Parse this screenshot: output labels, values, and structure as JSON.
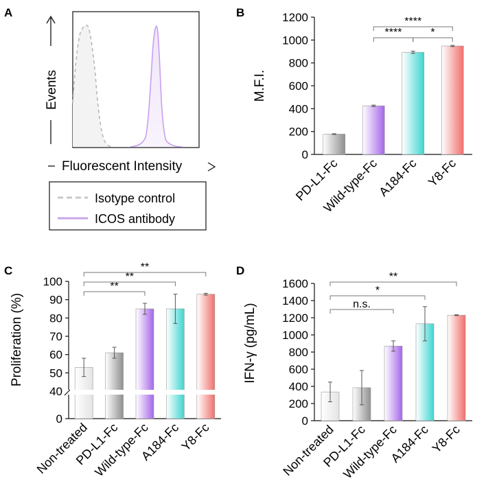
{
  "chart_data": [
    {
      "panel": "A",
      "type": "histogram",
      "ylabel": "Events",
      "xlabel": "Fluorescent Intensity",
      "legend": [
        {
          "label": "Isotype control",
          "color": "#c8c8c8",
          "style": "dashed"
        },
        {
          "label": "ICOS antibody",
          "color": "#c9a6e8",
          "style": "solid"
        }
      ]
    },
    {
      "panel": "B",
      "type": "bar",
      "ylabel": "M.F.I.",
      "ylim": [
        0,
        1200
      ],
      "yticks": [
        "0",
        "200",
        "400",
        "600",
        "800",
        "1000",
        "1200"
      ],
      "categories": [
        "PD-L1-Fc",
        "Wild-type-Fc",
        "A184-Fc",
        "Y8-Fc"
      ],
      "values": [
        178,
        425,
        893,
        948
      ],
      "errors": [
        3,
        6,
        10,
        5
      ],
      "significance": [
        {
          "from": 1,
          "to": 2,
          "label": "****"
        },
        {
          "from": 2,
          "to": 3,
          "label": "*"
        },
        {
          "from": 1,
          "to": 3,
          "label": "****"
        }
      ]
    },
    {
      "panel": "C",
      "type": "bar",
      "ylabel": "Proliferation (%)",
      "ylim": [
        0,
        100
      ],
      "axis_break": [
        0,
        40
      ],
      "yticks": [
        "0",
        "40",
        "50",
        "60",
        "70",
        "80",
        "90",
        "100"
      ],
      "categories": [
        "Non-treated",
        "PD-L1-Fc",
        "Wild-type-Fc",
        "A184-Fc",
        "Y8-Fc"
      ],
      "values": [
        53,
        61,
        85,
        85,
        93
      ],
      "errors": [
        5,
        3,
        3,
        8,
        0.5
      ],
      "significance": [
        {
          "from": 0,
          "to": 2,
          "label": "**"
        },
        {
          "from": 0,
          "to": 3,
          "label": "**"
        },
        {
          "from": 0,
          "to": 4,
          "label": "**"
        }
      ]
    },
    {
      "panel": "D",
      "type": "bar",
      "ylabel": "IFN-γ (pg/mL)",
      "ylim": [
        0,
        1600
      ],
      "yticks": [
        "0",
        "200",
        "400",
        "600",
        "800",
        "1000",
        "1200",
        "1400",
        "1600"
      ],
      "categories": [
        "Non-treated",
        "PD-L1-Fc",
        "Wild-type-Fc",
        "A184-Fc",
        "Y8-Fc"
      ],
      "values": [
        335,
        385,
        870,
        1130,
        1230
      ],
      "errors": [
        115,
        200,
        60,
        200,
        5
      ],
      "significance": [
        {
          "from": 0,
          "to": 2,
          "label": "n.s."
        },
        {
          "from": 0,
          "to": 3,
          "label": "*"
        },
        {
          "from": 0,
          "to": 4,
          "label": "**"
        }
      ]
    }
  ],
  "gradients": {
    "Non-treated": [
      "#ffffff",
      "#e4e4e4"
    ],
    "PD-L1-Fc": [
      "#ffffff",
      "#8f8f8f"
    ],
    "Wild-type-Fc": [
      "#ffffff",
      "#a566e8"
    ],
    "A184-Fc": [
      "#ffffff",
      "#3ed5d0"
    ],
    "Y8-Fc": [
      "#ffffff",
      "#f0706c"
    ]
  }
}
